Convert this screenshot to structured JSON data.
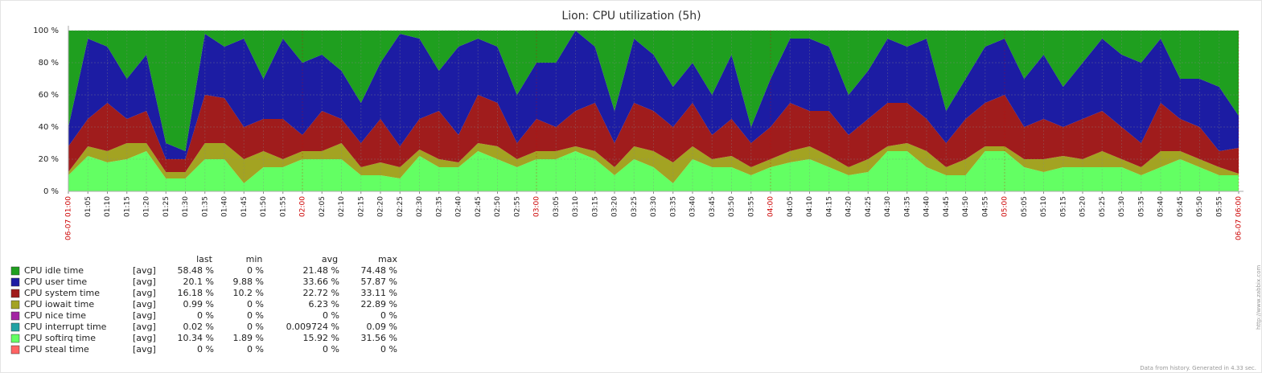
{
  "chart_data": {
    "type": "stacked_area",
    "title": "Lion: CPU utilization (5h)",
    "footer": "Data from history. Generated in 4.33 sec.",
    "watermark": "http://www.zabbix.com",
    "grid": true,
    "xlim": [
      0,
      300
    ],
    "ylim": [
      0,
      100
    ],
    "yticks": [
      {
        "value": 0,
        "label": "0 %"
      },
      {
        "value": 20,
        "label": "20 %"
      },
      {
        "value": 40,
        "label": "40 %"
      },
      {
        "value": 60,
        "label": "60 %"
      },
      {
        "value": 80,
        "label": "80 %"
      },
      {
        "value": 100,
        "label": "100 %"
      }
    ],
    "xticks": [
      {
        "value": 0,
        "label": "06-07 01:00"
      },
      {
        "value": 5,
        "label": "01:05"
      },
      {
        "value": 10,
        "label": "01:10"
      },
      {
        "value": 15,
        "label": "01:15"
      },
      {
        "value": 20,
        "label": "01:20"
      },
      {
        "value": 25,
        "label": "01:25"
      },
      {
        "value": 30,
        "label": "01:30"
      },
      {
        "value": 35,
        "label": "01:35"
      },
      {
        "value": 40,
        "label": "01:40"
      },
      {
        "value": 45,
        "label": "01:45"
      },
      {
        "value": 50,
        "label": "01:50"
      },
      {
        "value": 55,
        "label": "01:55"
      },
      {
        "value": 60,
        "label": "02:00"
      },
      {
        "value": 65,
        "label": "02:05"
      },
      {
        "value": 70,
        "label": "02:10"
      },
      {
        "value": 75,
        "label": "02:15"
      },
      {
        "value": 80,
        "label": "02:20"
      },
      {
        "value": 85,
        "label": "02:25"
      },
      {
        "value": 90,
        "label": "02:30"
      },
      {
        "value": 95,
        "label": "02:35"
      },
      {
        "value": 100,
        "label": "02:40"
      },
      {
        "value": 105,
        "label": "02:45"
      },
      {
        "value": 110,
        "label": "02:50"
      },
      {
        "value": 115,
        "label": "02:55"
      },
      {
        "value": 120,
        "label": "03:00"
      },
      {
        "value": 125,
        "label": "03:05"
      },
      {
        "value": 130,
        "label": "03:10"
      },
      {
        "value": 135,
        "label": "03:15"
      },
      {
        "value": 140,
        "label": "03:20"
      },
      {
        "value": 145,
        "label": "03:25"
      },
      {
        "value": 150,
        "label": "03:30"
      },
      {
        "value": 155,
        "label": "03:35"
      },
      {
        "value": 160,
        "label": "03:40"
      },
      {
        "value": 165,
        "label": "03:45"
      },
      {
        "value": 170,
        "label": "03:50"
      },
      {
        "value": 175,
        "label": "03:55"
      },
      {
        "value": 180,
        "label": "04:00"
      },
      {
        "value": 185,
        "label": "04:05"
      },
      {
        "value": 190,
        "label": "04:10"
      },
      {
        "value": 195,
        "label": "04:15"
      },
      {
        "value": 200,
        "label": "04:20"
      },
      {
        "value": 205,
        "label": "04:25"
      },
      {
        "value": 210,
        "label": "04:30"
      },
      {
        "value": 215,
        "label": "04:35"
      },
      {
        "value": 220,
        "label": "04:40"
      },
      {
        "value": 225,
        "label": "04:45"
      },
      {
        "value": 230,
        "label": "04:50"
      },
      {
        "value": 235,
        "label": "04:55"
      },
      {
        "value": 240,
        "label": "05:00"
      },
      {
        "value": 245,
        "label": "05:05"
      },
      {
        "value": 250,
        "label": "05:10"
      },
      {
        "value": 255,
        "label": "05:15"
      },
      {
        "value": 260,
        "label": "05:20"
      },
      {
        "value": 265,
        "label": "05:25"
      },
      {
        "value": 270,
        "label": "05:30"
      },
      {
        "value": 275,
        "label": "05:35"
      },
      {
        "value": 280,
        "label": "05:40"
      },
      {
        "value": 285,
        "label": "05:45"
      },
      {
        "value": 290,
        "label": "05:50"
      },
      {
        "value": 295,
        "label": "05:55"
      },
      {
        "value": 300,
        "label": "06-07 06:00"
      }
    ],
    "x": [
      0,
      5,
      10,
      15,
      20,
      25,
      30,
      35,
      40,
      45,
      50,
      55,
      60,
      65,
      70,
      75,
      80,
      85,
      90,
      95,
      100,
      105,
      110,
      115,
      120,
      125,
      130,
      135,
      140,
      145,
      150,
      155,
      160,
      165,
      170,
      175,
      180,
      185,
      190,
      195,
      200,
      205,
      210,
      215,
      220,
      225,
      230,
      235,
      240,
      245,
      250,
      255,
      260,
      265,
      270,
      275,
      280,
      285,
      290,
      295,
      300
    ],
    "series": [
      {
        "name": "CPU idle time",
        "color": "#1f9f1f",
        "values": [
          60,
          5,
          10,
          30,
          15,
          70,
          75,
          2,
          10,
          5,
          30,
          5,
          20,
          15,
          25,
          45,
          20,
          2,
          5,
          25,
          10,
          5,
          10,
          40,
          20,
          20,
          0,
          10,
          50,
          5,
          15,
          35,
          20,
          40,
          15,
          60,
          30,
          5,
          5,
          10,
          40,
          25,
          5,
          10,
          5,
          50,
          30,
          10,
          5,
          30,
          15,
          35,
          20,
          5,
          15,
          20,
          5,
          30,
          30,
          35,
          53
        ]
      },
      {
        "name": "CPU user time",
        "color": "#1c1ca3",
        "values": [
          12,
          50,
          35,
          25,
          35,
          10,
          5,
          38,
          32,
          55,
          25,
          50,
          45,
          35,
          30,
          25,
          35,
          70,
          50,
          25,
          55,
          35,
          35,
          30,
          35,
          40,
          50,
          35,
          20,
          40,
          35,
          25,
          25,
          25,
          40,
          10,
          30,
          40,
          45,
          40,
          25,
          30,
          40,
          35,
          50,
          20,
          25,
          35,
          35,
          30,
          40,
          25,
          35,
          45,
          45,
          50,
          40,
          25,
          30,
          40,
          20
        ]
      },
      {
        "name": "CPU system time",
        "color": "#a01c1c",
        "values": [
          16,
          17,
          30,
          15,
          20,
          8,
          8,
          30,
          28,
          20,
          20,
          25,
          10,
          25,
          15,
          15,
          27,
          13,
          19,
          30,
          17,
          30,
          27,
          10,
          20,
          15,
          22,
          30,
          15,
          27,
          25,
          22,
          27,
          15,
          23,
          15,
          20,
          30,
          22,
          28,
          20,
          25,
          27,
          25,
          20,
          15,
          25,
          27,
          32,
          20,
          25,
          18,
          25,
          25,
          20,
          15,
          30,
          20,
          20,
          10,
          16
        ]
      },
      {
        "name": "CPU iowait time",
        "color": "#a3a322",
        "values": [
          2,
          6,
          7,
          10,
          5,
          4,
          4,
          10,
          10,
          15,
          10,
          5,
          5,
          5,
          10,
          5,
          8,
          7,
          4,
          5,
          3,
          5,
          8,
          5,
          5,
          5,
          3,
          5,
          5,
          8,
          10,
          13,
          8,
          5,
          7,
          5,
          5,
          7,
          8,
          7,
          5,
          8,
          3,
          5,
          10,
          5,
          10,
          3,
          3,
          5,
          8,
          7,
          5,
          10,
          5,
          5,
          10,
          5,
          5,
          5,
          1
        ]
      },
      {
        "name": "CPU nice time",
        "color": "#a322a3",
        "values": [
          0,
          0,
          0,
          0,
          0,
          0,
          0,
          0,
          0,
          0,
          0,
          0,
          0,
          0,
          0,
          0,
          0,
          0,
          0,
          0,
          0,
          0,
          0,
          0,
          0,
          0,
          0,
          0,
          0,
          0,
          0,
          0,
          0,
          0,
          0,
          0,
          0,
          0,
          0,
          0,
          0,
          0,
          0,
          0,
          0,
          0,
          0,
          0,
          0,
          0,
          0,
          0,
          0,
          0,
          0,
          0,
          0,
          0,
          0,
          0,
          0
        ]
      },
      {
        "name": "CPU interrupt time",
        "color": "#22a3a3",
        "values": [
          0.01,
          0.01,
          0.01,
          0.01,
          0.01,
          0.01,
          0.01,
          0.01,
          0.01,
          0.01,
          0.01,
          0.01,
          0.01,
          0.01,
          0.01,
          0.01,
          0.01,
          0.01,
          0.01,
          0.01,
          0.01,
          0.01,
          0.01,
          0.01,
          0.01,
          0.01,
          0.01,
          0.01,
          0.01,
          0.01,
          0.01,
          0.01,
          0.01,
          0.01,
          0.01,
          0.01,
          0.01,
          0.01,
          0.01,
          0.01,
          0.01,
          0.01,
          0.01,
          0.01,
          0.01,
          0.01,
          0.01,
          0.01,
          0.01,
          0.01,
          0.01,
          0.01,
          0.01,
          0.01,
          0.01,
          0.01,
          0.01,
          0.01,
          0.01,
          0.01,
          0.01
        ]
      },
      {
        "name": "CPU softirq time",
        "color": "#63ff63",
        "values": [
          10,
          22,
          18,
          20,
          25,
          8,
          8,
          20,
          20,
          5,
          15,
          15,
          20,
          20,
          20,
          10,
          10,
          8,
          22,
          15,
          15,
          25,
          20,
          15,
          20,
          20,
          25,
          20,
          10,
          20,
          15,
          5,
          20,
          15,
          15,
          10,
          15,
          18,
          20,
          15,
          10,
          12,
          25,
          25,
          15,
          10,
          10,
          25,
          25,
          15,
          12,
          15,
          15,
          15,
          15,
          10,
          15,
          20,
          15,
          10,
          10
        ]
      },
      {
        "name": "CPU steal time",
        "color": "#ff6363",
        "values": [
          0,
          0,
          0,
          0,
          0,
          0,
          0,
          0,
          0,
          0,
          0,
          0,
          0,
          0,
          0,
          0,
          0,
          0,
          0,
          0,
          0,
          0,
          0,
          0,
          0,
          0,
          0,
          0,
          0,
          0,
          0,
          0,
          0,
          0,
          0,
          0,
          0,
          0,
          0,
          0,
          0,
          0,
          0,
          0,
          0,
          0,
          0,
          0,
          0,
          0,
          0,
          0,
          0,
          0,
          0,
          0,
          0,
          0,
          0,
          0,
          0
        ]
      }
    ],
    "legend": {
      "columns": [
        "last",
        "min",
        "avg",
        "max"
      ],
      "rows": [
        {
          "function": "[avg]",
          "stats": [
            "58.48 %",
            "0 %",
            "21.48 %",
            "74.48 %"
          ]
        },
        {
          "function": "[avg]",
          "stats": [
            "20.1 %",
            "9.88 %",
            "33.66 %",
            "57.87 %"
          ]
        },
        {
          "function": "[avg]",
          "stats": [
            "16.18 %",
            "10.2 %",
            "22.72 %",
            "33.11 %"
          ]
        },
        {
          "function": "[avg]",
          "stats": [
            "0.99 %",
            "0 %",
            "6.23 %",
            "22.89 %"
          ]
        },
        {
          "function": "[avg]",
          "stats": [
            "0 %",
            "0 %",
            "0 %",
            "0 %"
          ]
        },
        {
          "function": "[avg]",
          "stats": [
            "0.02 %",
            "0 %",
            "0.009724 %",
            "0.09 %"
          ]
        },
        {
          "function": "[avg]",
          "stats": [
            "10.34 %",
            "1.89 %",
            "15.92 %",
            "31.56 %"
          ]
        },
        {
          "function": "[avg]",
          "stats": [
            "0 %",
            "0 %",
            "0 %",
            "0 %"
          ]
        }
      ]
    }
  }
}
